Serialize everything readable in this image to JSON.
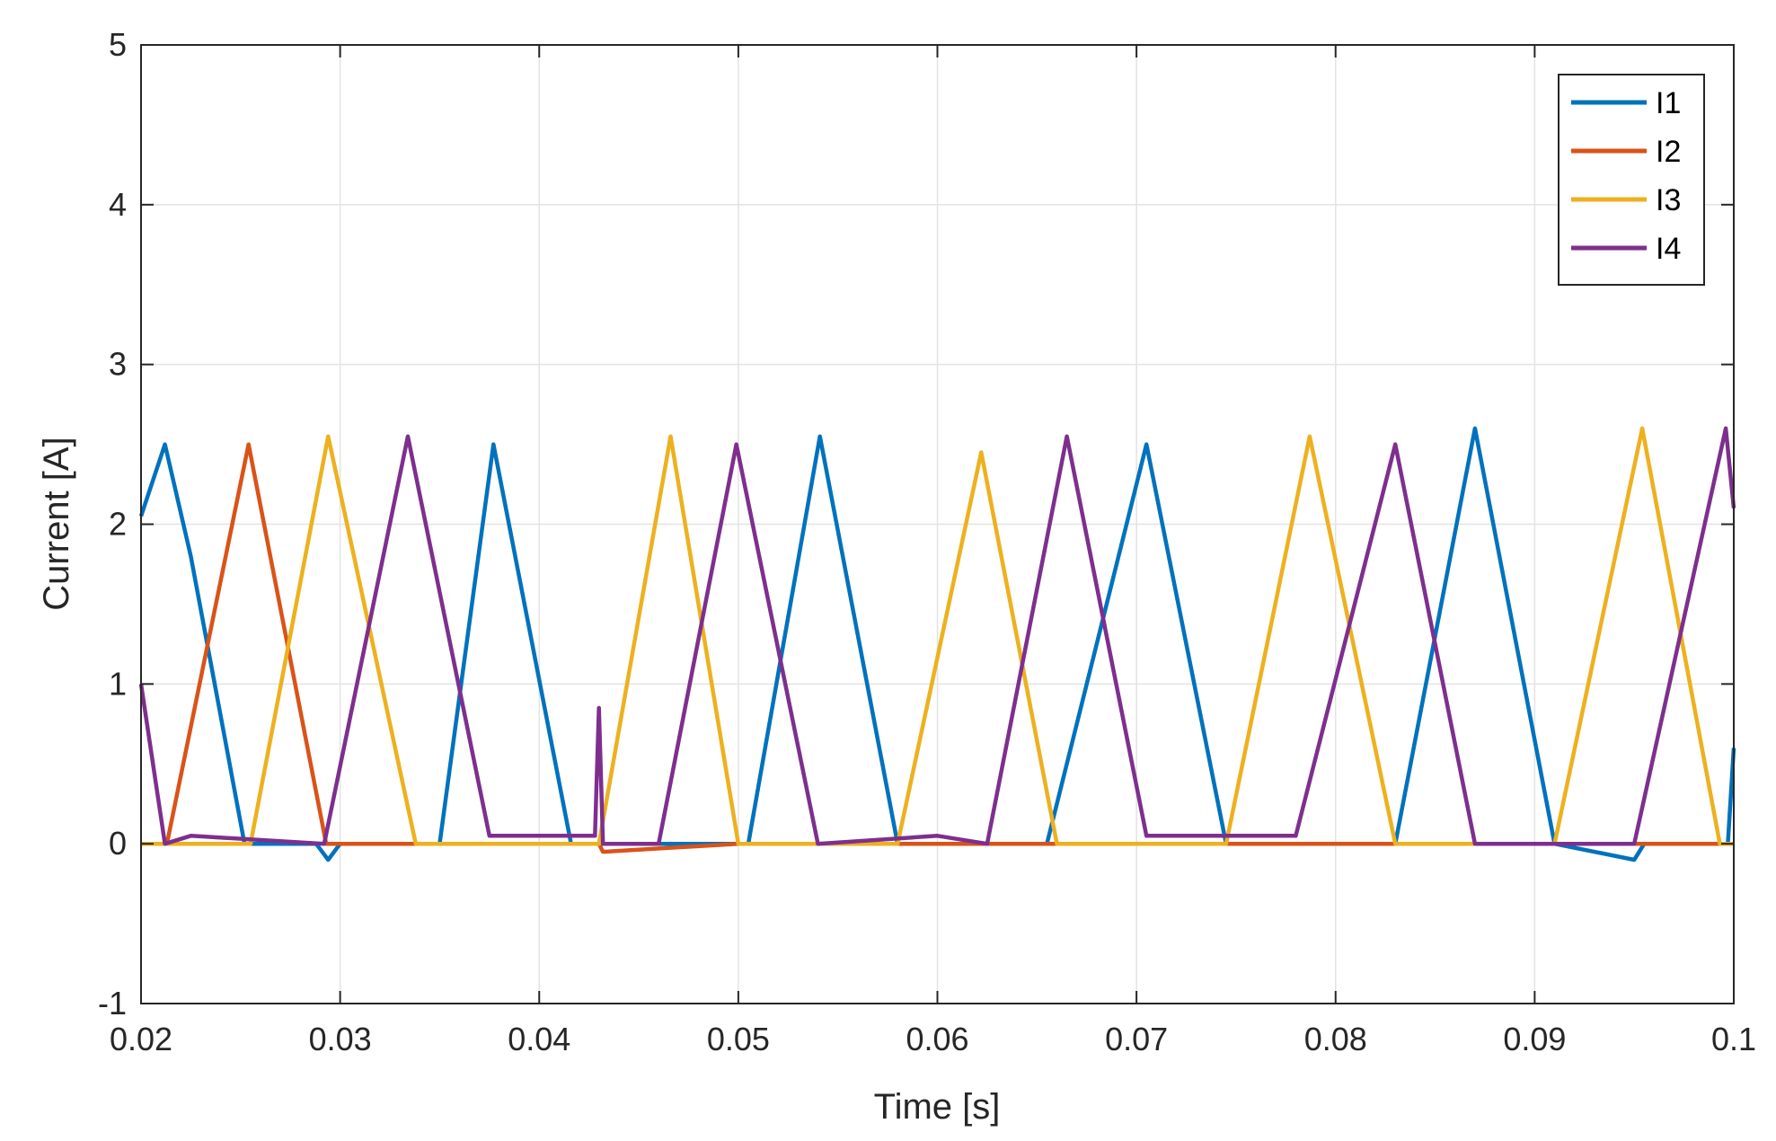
{
  "chart_data": {
    "type": "line",
    "title": "",
    "xlabel": "Time [s]",
    "ylabel": "Current [A]",
    "xlim": [
      0.02,
      0.1
    ],
    "ylim": [
      -1,
      5
    ],
    "xticks": [
      0.02,
      0.03,
      0.04,
      0.05,
      0.06,
      0.07,
      0.08,
      0.09,
      0.1
    ],
    "xtick_labels": [
      "0.02",
      "0.03",
      "0.04",
      "0.05",
      "0.06",
      "0.07",
      "0.08",
      "0.09",
      "0.1"
    ],
    "yticks": [
      -1,
      0,
      1,
      2,
      3,
      4,
      5
    ],
    "ytick_labels": [
      "-1",
      "0",
      "1",
      "2",
      "3",
      "4",
      "5"
    ],
    "grid": true,
    "legend_position": "top-right",
    "series": [
      {
        "name": "I1",
        "color": "#0072BD",
        "x": [
          0.02,
          0.0212,
          0.0225,
          0.0237,
          0.0252,
          0.0288,
          0.0294,
          0.03,
          0.0345,
          0.035,
          0.0377,
          0.0416,
          0.046,
          0.05,
          0.0505,
          0.0541,
          0.058,
          0.063,
          0.0655,
          0.0705,
          0.0745,
          0.083,
          0.087,
          0.091,
          0.095,
          0.0955,
          0.0997,
          0.1
        ],
        "y": [
          2.05,
          2.5,
          1.8,
          1.0,
          0.0,
          0.0,
          -0.1,
          0.0,
          0.0,
          0.0,
          2.5,
          0.0,
          0.0,
          0.0,
          0.0,
          2.55,
          0.0,
          0.0,
          0.0,
          2.5,
          0.0,
          0.0,
          2.6,
          0.0,
          -0.1,
          0.0,
          0.0,
          0.6
        ]
      },
      {
        "name": "I2",
        "color": "#D95319",
        "x": [
          0.02,
          0.0213,
          0.0254,
          0.0293,
          0.03,
          0.043,
          0.0432,
          0.05,
          0.1
        ],
        "y": [
          0.0,
          0.0,
          2.5,
          0.0,
          0.0,
          0.0,
          -0.05,
          0.0,
          0.0
        ]
      },
      {
        "name": "I3",
        "color": "#EDB120",
        "x": [
          0.02,
          0.0255,
          0.0294,
          0.0338,
          0.04,
          0.043,
          0.0466,
          0.05,
          0.058,
          0.0622,
          0.066,
          0.0745,
          0.0787,
          0.083,
          0.091,
          0.0954,
          0.0993,
          0.1
        ],
        "y": [
          0.0,
          0.0,
          2.55,
          0.0,
          0.0,
          0.0,
          2.55,
          0.0,
          0.0,
          2.45,
          0.0,
          0.0,
          2.55,
          0.0,
          0.0,
          2.6,
          0.0,
          0.0
        ]
      },
      {
        "name": "I4",
        "color": "#7E2F8E",
        "x": [
          0.02,
          0.0212,
          0.0225,
          0.0292,
          0.0334,
          0.0375,
          0.04,
          0.0428,
          0.043,
          0.0432,
          0.046,
          0.0499,
          0.054,
          0.06,
          0.0625,
          0.0665,
          0.0705,
          0.078,
          0.083,
          0.087,
          0.09,
          0.095,
          0.0996,
          0.1
        ],
        "y": [
          1.0,
          0.0,
          0.05,
          0.0,
          2.55,
          0.05,
          0.05,
          0.05,
          0.85,
          0.0,
          0.0,
          2.5,
          0.0,
          0.05,
          0.0,
          2.55,
          0.05,
          0.05,
          2.5,
          0.0,
          0.0,
          0.0,
          2.6,
          2.1
        ]
      }
    ]
  }
}
